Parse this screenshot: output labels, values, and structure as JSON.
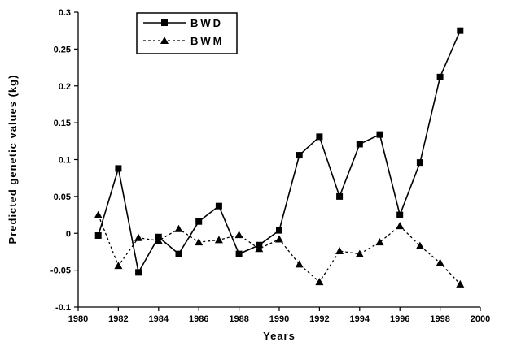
{
  "chart_data": {
    "type": "line",
    "xlabel": "Years",
    "ylabel": "Predicted genetic values (kg)",
    "xlim": [
      1980,
      2000
    ],
    "ylim": [
      -0.1,
      0.3
    ],
    "x_ticks": [
      "1980",
      "1982",
      "1984",
      "1986",
      "1988",
      "1990",
      "1992",
      "1994",
      "1996",
      "1998",
      "2000"
    ],
    "y_ticks": [
      "0.3",
      "0.25",
      "0.2",
      "0.15",
      "0.1",
      "0.05",
      "0",
      "-0.05",
      "-0.1"
    ],
    "grid": false,
    "legend_position": "top-left",
    "x": [
      1981,
      1982,
      1983,
      1984,
      1985,
      1986,
      1987,
      1988,
      1989,
      1990,
      1991,
      1992,
      1993,
      1994,
      1995,
      1996,
      1997,
      1998,
      1999
    ],
    "series": [
      {
        "name": "BWD",
        "line_style": "solid",
        "marker": "square",
        "color": "#000000",
        "values": [
          -0.003,
          0.088,
          -0.053,
          -0.005,
          -0.028,
          0.016,
          0.037,
          -0.028,
          -0.016,
          0.004,
          0.106,
          0.131,
          0.05,
          0.121,
          0.134,
          0.025,
          0.096,
          0.212,
          0.275
        ]
      },
      {
        "name": "BWM",
        "line_style": "dotted",
        "marker": "triangle",
        "color": "#000000",
        "values": [
          0.025,
          -0.044,
          -0.006,
          -0.01,
          0.006,
          -0.012,
          -0.009,
          -0.002,
          -0.021,
          -0.008,
          -0.042,
          -0.066,
          -0.024,
          -0.028,
          -0.012,
          0.01,
          -0.017,
          -0.04,
          -0.069
        ]
      }
    ]
  }
}
